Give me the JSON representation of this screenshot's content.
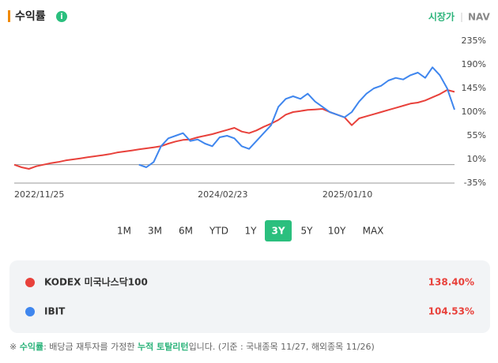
{
  "header": {
    "title": "수익률",
    "toggle": [
      "시장가",
      "NAV"
    ]
  },
  "chart_data": {
    "type": "line",
    "categories": [
      "2022/11/25",
      null,
      null,
      null,
      null,
      null,
      null,
      null,
      null,
      null,
      null,
      null,
      null,
      null,
      null,
      null,
      null,
      null,
      null,
      null,
      null,
      null,
      null,
      null,
      null,
      "2024/02/23",
      null,
      null,
      null,
      null,
      null,
      null,
      null,
      null,
      null,
      null,
      null,
      null,
      null,
      null,
      null,
      null,
      "2025/01/10",
      null,
      null,
      null,
      null,
      null,
      null,
      null,
      null,
      null,
      null,
      null,
      null,
      null,
      null,
      null,
      null,
      null,
      null
    ],
    "series": [
      {
        "name": "KODEX 미국나스닥100",
        "color": "#e8413b",
        "return": "138.40%",
        "values": [
          0,
          -5,
          -8,
          -3,
          0,
          3,
          5,
          8,
          10,
          12,
          14,
          16,
          18,
          20,
          23,
          25,
          27,
          29,
          31,
          33,
          35,
          40,
          44,
          47,
          48,
          52,
          55,
          58,
          62,
          66,
          70,
          63,
          60,
          65,
          72,
          78,
          85,
          95,
          100,
          102,
          104,
          105,
          106,
          100,
          95,
          90,
          75,
          88,
          92,
          96,
          100,
          104,
          108,
          112,
          116,
          118,
          122,
          128,
          134,
          142,
          138.4
        ]
      },
      {
        "name": "IBIT",
        "color": "#3f86ee",
        "return": "104.53%",
        "values": [
          null,
          null,
          null,
          null,
          null,
          null,
          null,
          null,
          null,
          null,
          null,
          null,
          null,
          null,
          null,
          null,
          null,
          0,
          -5,
          5,
          35,
          50,
          55,
          60,
          45,
          48,
          40,
          35,
          52,
          55,
          50,
          35,
          30,
          45,
          60,
          75,
          110,
          125,
          130,
          125,
          135,
          120,
          110,
          100,
          95,
          90,
          100,
          120,
          135,
          145,
          150,
          160,
          165,
          162,
          170,
          175,
          165,
          185,
          170,
          145,
          104.53
        ]
      }
    ],
    "ylim": [
      -35,
      235
    ],
    "yticks": [
      {
        "value": -35,
        "label": "-35%"
      },
      {
        "value": 10,
        "label": "10%"
      },
      {
        "value": 55,
        "label": "55%"
      },
      {
        "value": 100,
        "label": "100%"
      },
      {
        "value": 145,
        "label": "145%"
      },
      {
        "value": 190,
        "label": "190%"
      },
      {
        "value": 235,
        "label": "235%"
      }
    ],
    "grid": false
  },
  "periods": {
    "options": [
      "1M",
      "3M",
      "6M",
      "YTD",
      "1Y",
      "3Y",
      "5Y",
      "10Y",
      "MAX"
    ],
    "active": 5
  },
  "footnote": [
    "※",
    "수익률",
    ": 배당금 재투자를 가정한",
    "누적 토탈리턴",
    "입니다. (기준 : 국내종목 11/27, 해외종목 11/26)"
  ]
}
